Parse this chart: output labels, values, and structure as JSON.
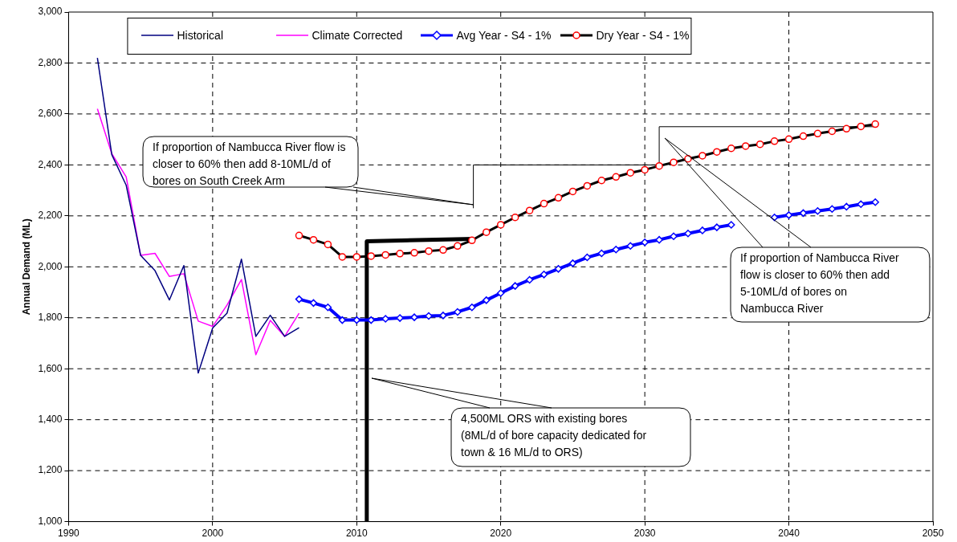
{
  "chart_data": {
    "type": "line",
    "ylabel": "Annual Demand (ML)",
    "xlim": [
      1990,
      2050
    ],
    "xticks": [
      1990,
      2000,
      2010,
      2020,
      2030,
      2040,
      2050
    ],
    "ylim": [
      1000,
      3000
    ],
    "yticks": [
      {
        "value": 1000,
        "label": "1,000"
      },
      {
        "value": 1200,
        "label": "1,200"
      },
      {
        "value": 1400,
        "label": "1,400"
      },
      {
        "value": 1600,
        "label": "1,600"
      },
      {
        "value": 1800,
        "label": "1,800"
      },
      {
        "value": 2000,
        "label": "2,000"
      },
      {
        "value": 2200,
        "label": "2,200"
      },
      {
        "value": 2400,
        "label": "2,400"
      },
      {
        "value": 2600,
        "label": "2,600"
      },
      {
        "value": 2800,
        "label": "2,800"
      },
      {
        "value": 3000,
        "label": "3,000"
      }
    ],
    "grid": true,
    "legend": "top",
    "series": [
      {
        "name": "Historical",
        "color": "#000080",
        "marker": "none",
        "x": [
          1992,
          1993,
          1994,
          1995,
          1996,
          1997,
          1998,
          1999,
          2000,
          2001,
          2002,
          2003,
          2004,
          2005,
          2006
        ],
        "values": [
          2820,
          2440,
          2320,
          2045,
          1985,
          1870,
          2005,
          1583,
          1760,
          1818,
          2030,
          1727,
          1810,
          1727,
          1761
        ]
      },
      {
        "name": "Climate Corrected",
        "color": "#ff00ff",
        "marker": "none",
        "x": [
          1992,
          1993,
          1994,
          1995,
          1996,
          1997,
          1998,
          1999,
          2000,
          2001,
          2002,
          2003,
          2004,
          2005,
          2006
        ],
        "values": [
          2620,
          2444,
          2353,
          2045,
          2053,
          1962,
          1973,
          1787,
          1766,
          1850,
          1950,
          1655,
          1790,
          1727,
          1818
        ]
      },
      {
        "name": "Avg Year - S4 - 1%",
        "color": "#0000ff",
        "marker": "diamond",
        "x": [
          2006,
          2007,
          2008,
          2009,
          2010,
          2011,
          2012,
          2013,
          2014,
          2015,
          2016,
          2017,
          2018,
          2019,
          2020,
          2021,
          2022,
          2023,
          2024,
          2025,
          2026,
          2027,
          2028,
          2029,
          2030,
          2031,
          2032,
          2033,
          2034,
          2035,
          2036,
          2037,
          2038,
          2039,
          2040,
          2041,
          2042,
          2043,
          2044,
          2045,
          2046
        ],
        "values": [
          1873,
          1858,
          1841,
          1791,
          1791,
          1791,
          1796,
          1799,
          1802,
          1807,
          1809,
          1823,
          1841,
          1869,
          1897,
          1925,
          1949,
          1970,
          1992,
          2014,
          2037,
          2053,
          2068,
          2082,
          2096,
          2106,
          2120,
          2131,
          2143,
          2155,
          2165,
          null,
          null,
          2194,
          2203,
          2211,
          2219,
          2227,
          2236,
          2246,
          2254
        ]
      },
      {
        "name": "Dry Year - S4 - 1%",
        "color": "#000000",
        "colors": [
          "#ff0000",
          "#ff0000",
          "#ff0000",
          "#ff0000",
          "#ff0000",
          "#ff0000",
          "#ff0000",
          "#ff0000",
          "#ff0000",
          "#ff0000",
          "#ff0000",
          "#ff0000",
          "#ff0000",
          "#ff0000",
          "#ff0000",
          "#ff0000",
          "#ff0000",
          "#ff0000",
          "#ff0000",
          "#ff0000",
          "#ff0000",
          "#ff0000",
          "#ff0000",
          "#ff0000",
          "#ff0000",
          "#ff0000",
          "#ff0000",
          "#ff0000",
          "#ff0000",
          "#ff0000",
          "#ff0000",
          "#ff0000",
          "#ff0000",
          "#ff0000",
          "#ff0000",
          "#ff0000",
          "#ff0000",
          "#ff0000",
          "#ff0000",
          "#ff0000",
          "#ff0000"
        ],
        "marker": "circle",
        "x": [
          2006,
          2007,
          2008,
          2009,
          2010,
          2011,
          2012,
          2013,
          2014,
          2015,
          2016,
          2017,
          2018,
          2019,
          2020,
          2021,
          2022,
          2023,
          2024,
          2025,
          2026,
          2027,
          2028,
          2029,
          2030,
          2031,
          2032,
          2033,
          2034,
          2035,
          2036,
          2037,
          2038,
          2039,
          2040,
          2041,
          2042,
          2043,
          2044,
          2045,
          2046
        ],
        "values": [
          2123,
          2106,
          2088,
          2039,
          2039,
          2042,
          2047,
          2052,
          2055,
          2062,
          2066,
          2082,
          2104,
          2136,
          2165,
          2194,
          2221,
          2248,
          2271,
          2296,
          2318,
          2339,
          2353,
          2369,
          2381,
          2396,
          2410,
          2424,
          2436,
          2451,
          2465,
          2474,
          2481,
          2493,
          2501,
          2513,
          2523,
          2532,
          2542,
          2551,
          2560
        ]
      },
      {
        "type": "line",
        "color": "#000000",
        "marker": "none",
        "x": [
          2010.7,
          2010.7,
          2018.1
        ],
        "values": [
          1000,
          2100,
          2110
        ]
      },
      {
        "type": "line",
        "color": "#000000",
        "marker": "none",
        "x": [
          2018.1,
          2018.1,
          2031,
          2031,
          2046
        ],
        "values": [
          2230,
          2400,
          2400,
          2550,
          2550
        ]
      }
    ],
    "annotations": [
      "If proportion of Nambucca River flow is closer to 60% then add 8-10ML/d of bores on South Creek Arm",
      "If proportion of Nambucca River flow is closer to 60% then add 5-10ML/d of bores on Nambucca River",
      "4,500ML ORS with existing bores (8ML/d of bore capacity dedicated for town & 16 ML/d to ORS)"
    ]
  }
}
